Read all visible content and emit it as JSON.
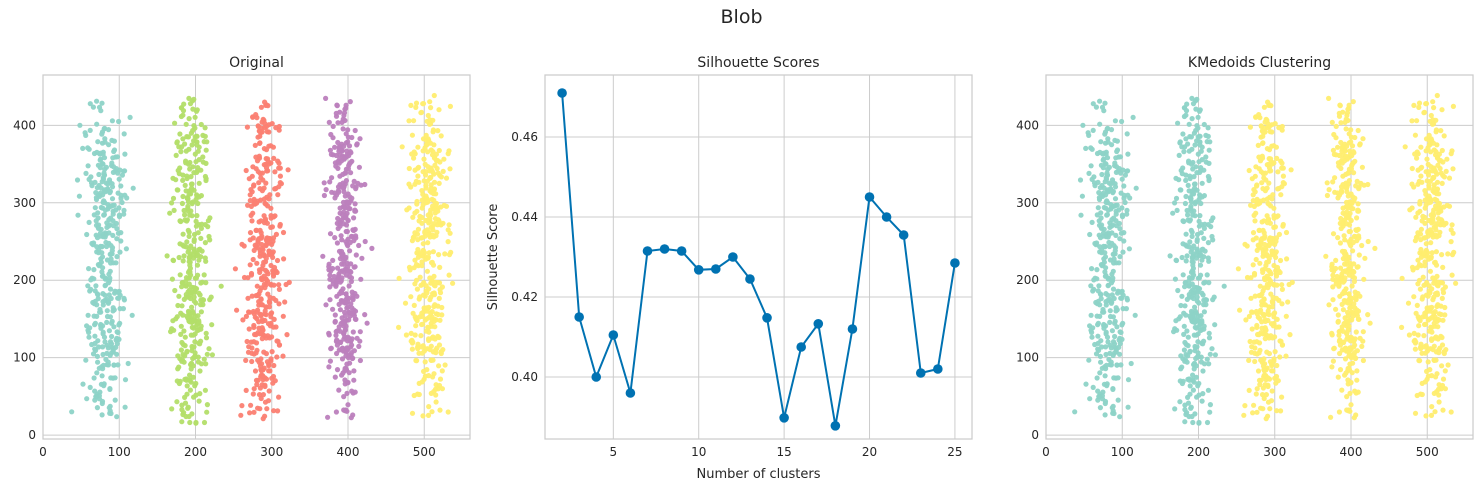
{
  "figure": {
    "title": "Blob"
  },
  "colors": {
    "teal": "#8dd3c7",
    "green": "#b3de69",
    "salmon": "#fb8072",
    "purple": "#bc80bd",
    "yellow": "#ffed6f",
    "line": "#0072b2"
  },
  "chart_data": [
    {
      "type": "scatter",
      "title": "Original",
      "xlabel": "",
      "ylabel": "",
      "xlim": [
        0,
        560
      ],
      "ylim": [
        -5,
        465
      ],
      "xticks": [
        0,
        100,
        200,
        300,
        400,
        500
      ],
      "yticks": [
        0,
        100,
        200,
        300,
        400
      ],
      "grid": true,
      "clusters": [
        {
          "center_x": 80,
          "x_spread": 28,
          "y_range": [
            20,
            435
          ],
          "color": "#8dd3c7"
        },
        {
          "center_x": 195,
          "x_spread": 22,
          "y_range": [
            15,
            435
          ],
          "color": "#b3de69"
        },
        {
          "center_x": 290,
          "x_spread": 24,
          "y_range": [
            20,
            430
          ],
          "color": "#fb8072"
        },
        {
          "center_x": 395,
          "x_spread": 22,
          "y_range": [
            20,
            435
          ],
          "color": "#bc80bd"
        },
        {
          "center_x": 505,
          "x_spread": 25,
          "y_range": [
            20,
            440
          ],
          "color": "#ffed6f"
        }
      ]
    },
    {
      "type": "line",
      "title": "Silhouette Scores",
      "xlabel": "Number of clusters",
      "ylabel": "Silhouette Score",
      "xlim": [
        1,
        26
      ],
      "ylim": [
        0.3845,
        0.4755
      ],
      "xticks": [
        5,
        10,
        15,
        20,
        25
      ],
      "yticks": [
        0.4,
        0.42,
        0.44,
        0.46
      ],
      "ytick_labels": [
        "0.40",
        "0.42",
        "0.44",
        "0.46"
      ],
      "grid": true,
      "x": [
        2,
        3,
        4,
        5,
        6,
        7,
        8,
        9,
        10,
        11,
        12,
        13,
        14,
        15,
        16,
        17,
        18,
        19,
        20,
        21,
        22,
        23,
        24,
        25
      ],
      "values": [
        0.471,
        0.415,
        0.4,
        0.4105,
        0.396,
        0.4315,
        0.432,
        0.4315,
        0.4268,
        0.427,
        0.43,
        0.4245,
        0.4148,
        0.3898,
        0.4075,
        0.4133,
        0.3878,
        0.412,
        0.445,
        0.44,
        0.4355,
        0.401,
        0.402,
        0.4285
      ]
    },
    {
      "type": "scatter",
      "title": "KMedoids Clustering",
      "xlabel": "",
      "ylabel": "",
      "xlim": [
        0,
        560
      ],
      "ylim": [
        -5,
        465
      ],
      "xticks": [
        0,
        100,
        200,
        300,
        400,
        500
      ],
      "yticks": [
        0,
        100,
        200,
        300,
        400
      ],
      "grid": true,
      "clusters": [
        {
          "center_x": 80,
          "x_spread": 28,
          "y_range": [
            20,
            435
          ],
          "color": "#8dd3c7"
        },
        {
          "center_x": 195,
          "x_spread": 22,
          "y_range": [
            15,
            435
          ],
          "color": "#8dd3c7"
        },
        {
          "center_x": 290,
          "x_spread": 24,
          "y_range": [
            20,
            430
          ],
          "color": "#ffed6f"
        },
        {
          "center_x": 395,
          "x_spread": 22,
          "y_range": [
            20,
            435
          ],
          "color": "#ffed6f"
        },
        {
          "center_x": 505,
          "x_spread": 25,
          "y_range": [
            20,
            440
          ],
          "color": "#ffed6f"
        }
      ]
    }
  ]
}
